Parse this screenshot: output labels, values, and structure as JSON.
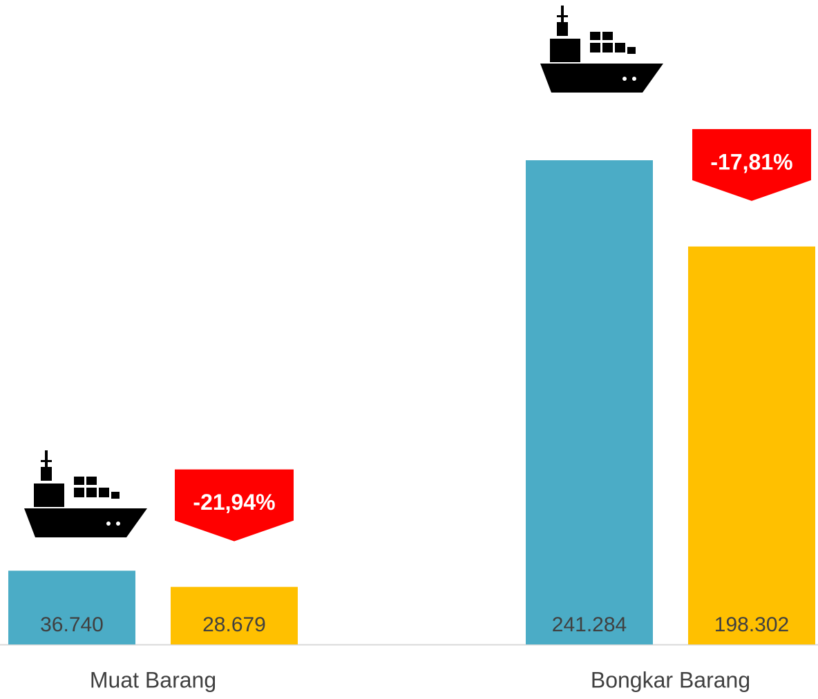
{
  "chart_data": {
    "type": "bar",
    "categories": [
      "Muat Barang",
      "Bongkar Barang"
    ],
    "series": [
      {
        "color": "#4bacc6",
        "values": [
          36740,
          241284
        ],
        "value_labels": [
          "36.740",
          "241.284"
        ]
      },
      {
        "color": "#ffc000",
        "values": [
          28679,
          198302
        ],
        "value_labels": [
          "28.679",
          "198.302"
        ]
      }
    ],
    "annotations": [
      "-21,94%",
      "-17,81%"
    ],
    "annotation_color": "#ff0000"
  }
}
